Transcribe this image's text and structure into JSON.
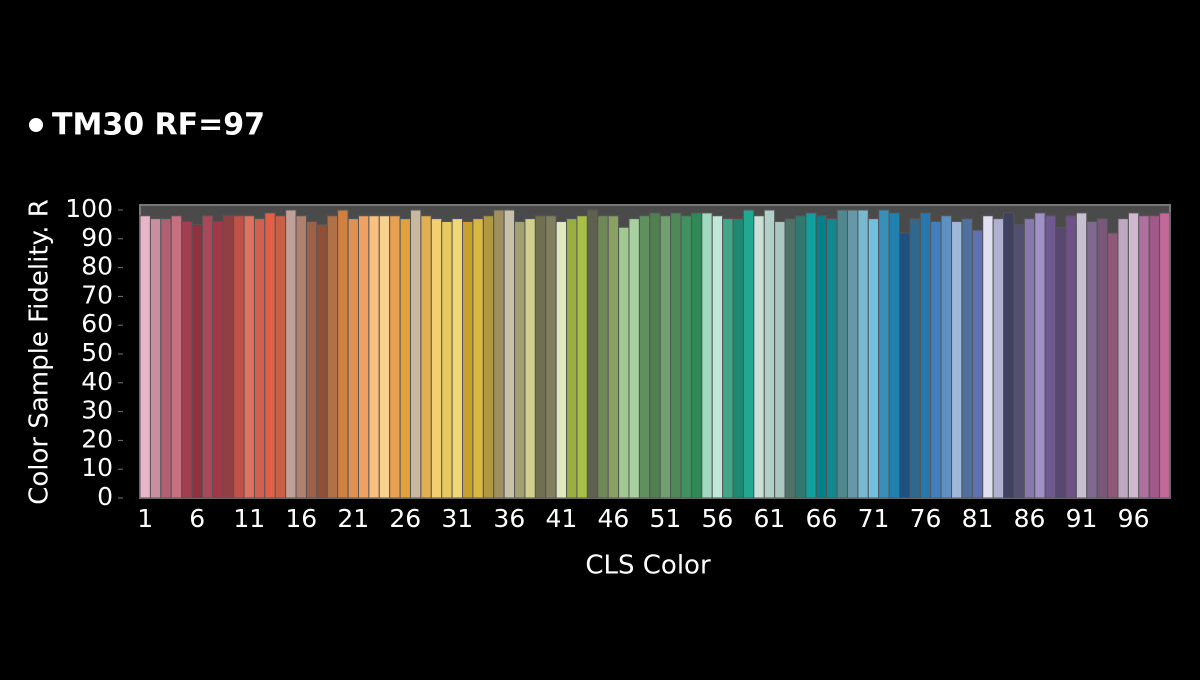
{
  "chart_data": {
    "type": "bar",
    "title": "TM30 RF=97",
    "x_label": "CLS Color",
    "y_label": "Color Sample Fidelity. R",
    "categories": [
      1,
      null,
      null,
      null,
      null,
      6,
      null,
      null,
      null,
      null,
      11,
      null,
      null,
      null,
      null,
      16,
      null,
      null,
      null,
      null,
      21,
      null,
      null,
      null,
      null,
      26,
      null,
      null,
      null,
      null,
      31,
      null,
      null,
      null,
      null,
      36,
      null,
      null,
      null,
      null,
      41,
      null,
      null,
      null,
      null,
      46,
      null,
      null,
      null,
      null,
      51,
      null,
      null,
      null,
      null,
      56,
      null,
      null,
      null,
      null,
      61,
      null,
      null,
      null,
      null,
      66,
      null,
      null,
      null,
      null,
      71,
      null,
      null,
      null,
      null,
      76,
      null,
      null,
      null,
      null,
      81,
      null,
      null,
      null,
      null,
      86,
      null,
      null,
      null,
      null,
      91,
      null,
      null,
      null,
      null,
      96,
      null,
      null,
      null
    ],
    "values": [
      98,
      97,
      97,
      98,
      96,
      95,
      98,
      96,
      98,
      98,
      98,
      97,
      99,
      98,
      100,
      98,
      96,
      95,
      98,
      100,
      97,
      98,
      98,
      98,
      98,
      97,
      100,
      98,
      97,
      96,
      97,
      96,
      97,
      98,
      100,
      100,
      96,
      97,
      98,
      98,
      96,
      97,
      98,
      100,
      98,
      98,
      94,
      97,
      98,
      99,
      98,
      99,
      98,
      99,
      99,
      98,
      97,
      97,
      100,
      98,
      100,
      96,
      97,
      98,
      99,
      98,
      97,
      100,
      100,
      100,
      97,
      100,
      99,
      92,
      97,
      99,
      96,
      98,
      96,
      97,
      93,
      98,
      97,
      99,
      95,
      97,
      99,
      98,
      94,
      98,
      99,
      96,
      97,
      92,
      97,
      99,
      98,
      98,
      99
    ],
    "colors": [
      "#e8b4c8",
      "#c98fa0",
      "#b06070",
      "#c77080",
      "#a04050",
      "#903040",
      "#a84858",
      "#a03848",
      "#904040",
      "#c05048",
      "#e07060",
      "#d06050",
      "#e06048",
      "#c86048",
      "#c0a098",
      "#b08070",
      "#a06048",
      "#905038",
      "#b07048",
      "#d08040",
      "#e09050",
      "#f0a060",
      "#f8c080",
      "#f8d090",
      "#e8a050",
      "#e0a040",
      "#c8b8a0",
      "#e0b050",
      "#f0d070",
      "#e8c860",
      "#f0d878",
      "#c8a030",
      "#d8b840",
      "#b09840",
      "#a09060",
      "#c8c0a8",
      "#a0a070",
      "#d0d090",
      "#707050",
      "#808060",
      "#e0e8c0",
      "#98b040",
      "#a8c048",
      "#606050",
      "#708858",
      "#88a060",
      "#a0c890",
      "#a8d0a0",
      "#609060",
      "#508050",
      "#70a070",
      "#508858",
      "#409060",
      "#308858",
      "#a0d8c0",
      "#c0e8d8",
      "#40a888",
      "#208870",
      "#20a890",
      "#c8e0d8",
      "#b0d0c8",
      "#a8c8c0",
      "#507068",
      "#307870",
      "#10a0a0",
      "#008088",
      "#108890",
      "#508890",
      "#6898a8",
      "#78b8d0",
      "#70c0e0",
      "#3890b8",
      "#2080b0",
      "#205080",
      "#306890",
      "#2878b0",
      "#4080c0",
      "#6090c0",
      "#a0b8d8",
      "#5070a0",
      "#6070b0",
      "#e0e0f0",
      "#b0b0d0",
      "#404060",
      "#505070",
      "#8878b0",
      "#a090c8",
      "#705890",
      "#584870",
      "#705088",
      "#c8c0d0",
      "#806890",
      "#785878",
      "#905878",
      "#c0a8c0",
      "#d0b8d0",
      "#b070a0",
      "#a05888",
      "#c06898"
    ],
    "ylim": [
      0,
      100
    ],
    "yticks": [
      0,
      10,
      20,
      30,
      40,
      50,
      60,
      70,
      80,
      90,
      100
    ]
  }
}
